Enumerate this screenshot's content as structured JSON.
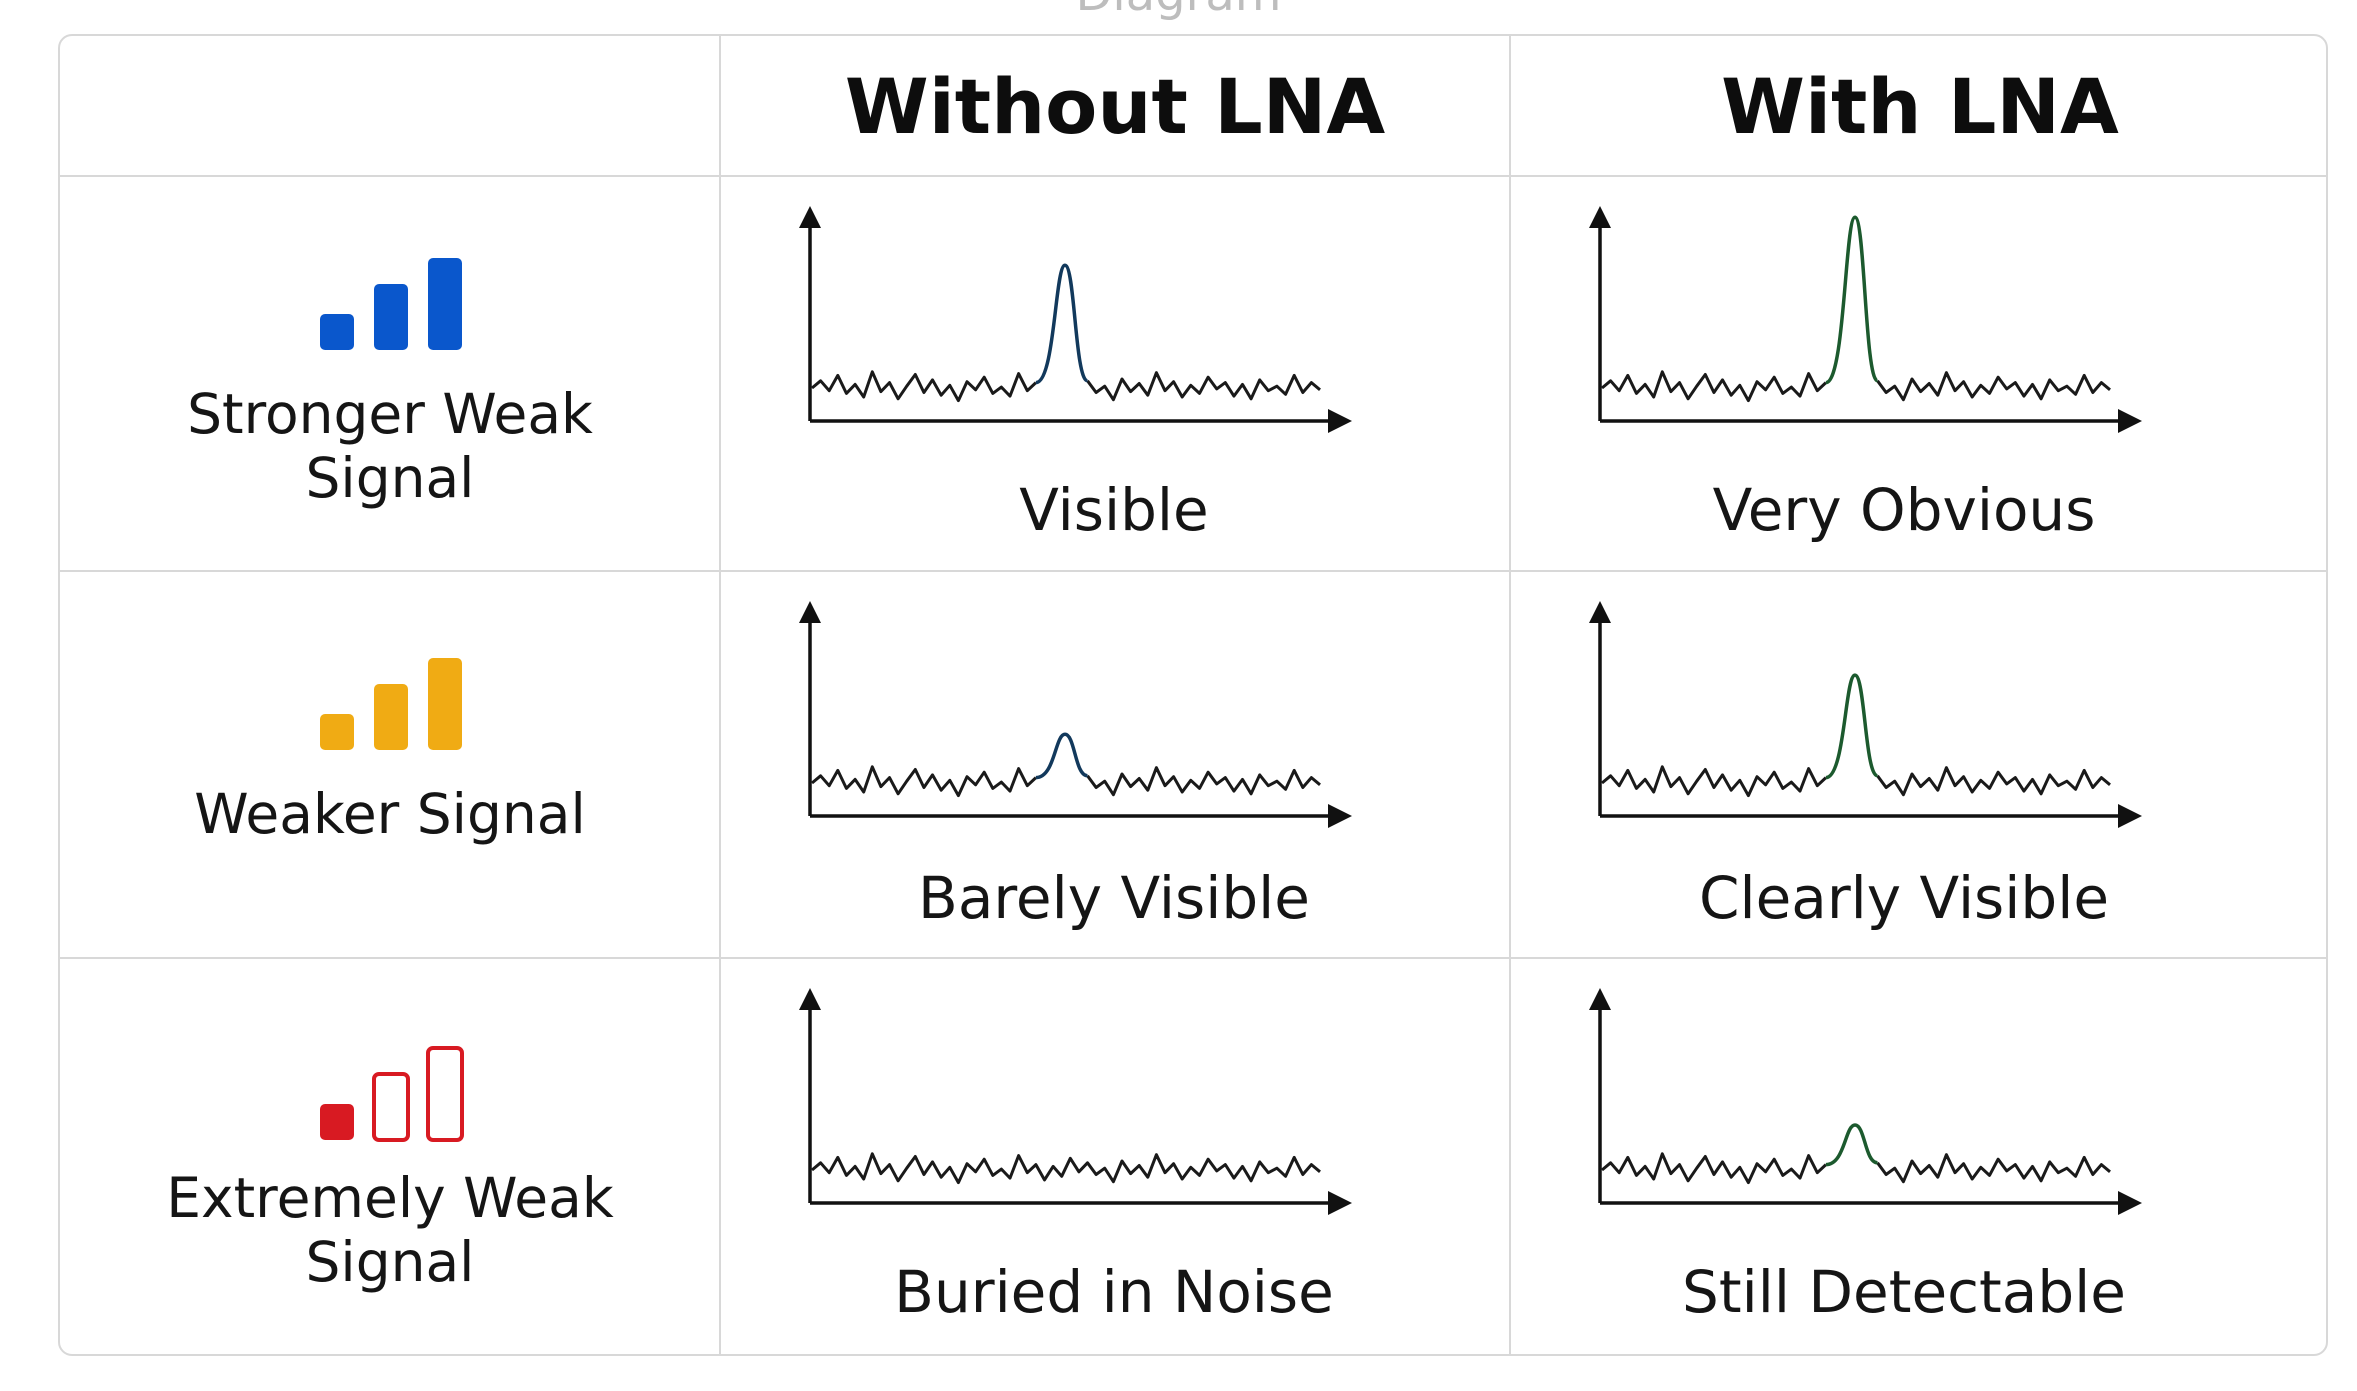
{
  "top_caption": "Diagram",
  "columns": [
    {
      "label": ""
    },
    {
      "label": "Without LNA"
    },
    {
      "label": "With LNA"
    }
  ],
  "rows": [
    {
      "label": "Stronger Weak Signal",
      "label_lines": [
        "Stronger Weak",
        "Signal"
      ],
      "bar_color": "#0a57cc",
      "bars_filled": 3,
      "without_lna": {
        "caption": "Visible",
        "peak_height": 0.62,
        "peak_color": "#12395c"
      },
      "with_lna": {
        "caption": "Very Obvious",
        "peak_height": 0.88,
        "peak_color": "#1c5a2e"
      }
    },
    {
      "label": "Weaker Signal",
      "label_lines": [
        "Weaker Signal"
      ],
      "bar_color": "#f0ab14",
      "bars_filled": 3,
      "without_lna": {
        "caption": "Barely Visible",
        "peak_height": 0.22,
        "peak_color": "#12395c"
      },
      "with_lna": {
        "caption": "Clearly Visible",
        "peak_height": 0.54,
        "peak_color": "#1c5a2e"
      }
    },
    {
      "label": "Extremely Weak Signal",
      "label_lines": [
        "Extremely Weak",
        "Signal"
      ],
      "bar_color": "#d81a22",
      "bars_filled": 1,
      "without_lna": {
        "caption": "Buried in Noise",
        "peak_height": 0.0,
        "peak_color": "#12395c"
      },
      "with_lna": {
        "caption": "Still Detectable",
        "peak_height": 0.2,
        "peak_color": "#1c5a2e"
      }
    }
  ]
}
